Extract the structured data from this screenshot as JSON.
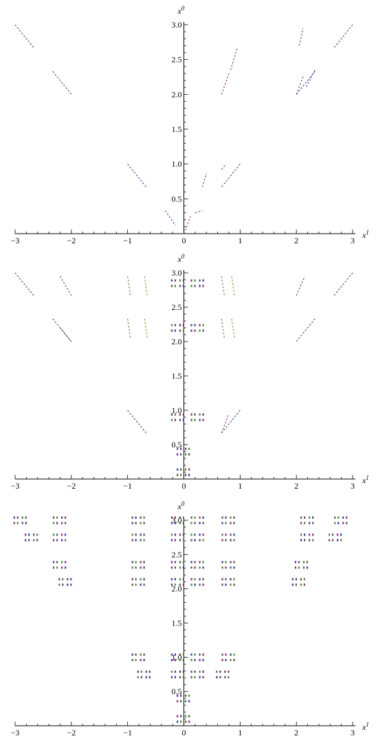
{
  "charts": [
    {
      "chart_data": {
        "type": "scatter",
        "xlim": [
          -3,
          3
        ],
        "ylim": [
          0,
          3
        ],
        "x_ticks": [
          "-3",
          "-2",
          "-1",
          "0",
          "1",
          "2",
          "3"
        ],
        "y_ticks": [
          "0.5",
          "1.0",
          "1.5",
          "2.0",
          "2.5",
          "3.0"
        ],
        "x_axis_label": {
          "base": "x",
          "sup": "1"
        },
        "y_axis_label": {
          "base": "x",
          "sup": "0"
        },
        "series": [
          {
            "color": "#3b3b9e",
            "segments": [
              [
                [
                  -3.0,
                  3.0
                ],
                [
                  -2.67,
                  2.67
                ]
              ],
              [
                [
                  -2.33,
                  2.33
                ],
                [
                  -2.0,
                  2.0
                ]
              ],
              [
                [
                  -1.0,
                  1.0
                ],
                [
                  -0.67,
                  0.67
                ]
              ],
              [
                [
                  -0.33,
                  0.33
                ],
                [
                  -0.15,
                  0.12
                ]
              ],
              [
                [
                  3.0,
                  3.0
                ],
                [
                  2.67,
                  2.67
                ]
              ],
              [
                [
                  2.33,
                  2.33
                ],
                [
                  2.0,
                  2.0
                ]
              ],
              [
                [
                  1.0,
                  1.0
                ],
                [
                  0.67,
                  0.67
                ]
              ]
            ]
          },
          {
            "color": "#8e2d6e",
            "segments": [
              [
                [
                  2.0,
                  2.0
                ],
                [
                  2.13,
                  2.28
                ]
              ],
              [
                [
                  2.33,
                  2.35
                ],
                [
                  2.17,
                  2.1
                ]
              ],
              [
                [
                  2.05,
                  2.7
                ],
                [
                  2.12,
                  2.95
                ]
              ],
              [
                [
                  0.67,
                  2.0
                ],
                [
                  0.8,
                  2.3
                ]
              ],
              [
                [
                  0.83,
                  2.35
                ],
                [
                  0.95,
                  2.67
                ]
              ],
              [
                [
                  0.33,
                  0.67
                ],
                [
                  0.4,
                  0.87
                ]
              ],
              [
                [
                  0.67,
                  0.92
                ],
                [
                  0.75,
                  1.0
                ]
              ],
              [
                [
                  0.0,
                  0.0
                ],
                [
                  0.12,
                  0.25
                ]
              ],
              [
                [
                  0.2,
                  0.3
                ],
                [
                  0.33,
                  0.33
                ]
              ]
            ]
          }
        ]
      }
    },
    {
      "chart_data": {
        "type": "scatter",
        "xlim": [
          -3,
          3
        ],
        "ylim": [
          0,
          3
        ],
        "x_ticks": [
          "-3",
          "-2",
          "-1",
          "0",
          "1",
          "2",
          "3"
        ],
        "y_ticks": [
          "0.5",
          "1.0",
          "1.5",
          "2.0",
          "2.5",
          "3.0"
        ],
        "x_axis_label": {
          "base": "x",
          "sup": "1"
        },
        "y_axis_label": {
          "base": "x",
          "sup": "0"
        },
        "series": [
          {
            "color": "#3b3b9e",
            "segments": [
              [
                [
                  -3.0,
                  3.0
                ],
                [
                  -2.67,
                  2.67
                ]
              ],
              [
                [
                  -2.33,
                  2.33
                ],
                [
                  -2.0,
                  2.0
                ]
              ],
              [
                [
                  -1.0,
                  1.0
                ],
                [
                  -0.67,
                  0.67
                ]
              ],
              [
                [
                  3.0,
                  3.0
                ],
                [
                  2.67,
                  2.67
                ]
              ],
              [
                [
                  2.33,
                  2.33
                ],
                [
                  2.0,
                  2.0
                ]
              ],
              [
                [
                  1.0,
                  1.0
                ],
                [
                  0.67,
                  0.67
                ]
              ]
            ]
          },
          {
            "color": "#8e2d6e",
            "segments": [
              [
                [
                  -2.2,
                  2.95
                ],
                [
                  -2.0,
                  2.67
                ]
              ],
              [
                [
                  -2.2,
                  2.2
                ],
                [
                  -2.0,
                  2.0
                ]
              ],
              [
                [
                  2.0,
                  2.67
                ],
                [
                  2.15,
                  2.95
                ]
              ],
              [
                [
                  0.67,
                  0.67
                ],
                [
                  0.8,
                  0.95
                ]
              ]
            ]
          },
          {
            "color": "#4c8a3a",
            "segments": [
              [
                [
                  -1.0,
                  2.95
                ],
                [
                  -0.95,
                  2.67
                ]
              ],
              [
                [
                  -1.0,
                  2.33
                ],
                [
                  -0.95,
                  2.05
                ]
              ],
              [
                [
                  0.67,
                  2.95
                ],
                [
                  0.72,
                  2.67
                ]
              ],
              [
                [
                  0.67,
                  2.33
                ],
                [
                  0.72,
                  2.05
                ]
              ]
            ]
          },
          {
            "color": "#b07a2a",
            "segments": [
              [
                [
                  0.85,
                  2.95
                ],
                [
                  0.9,
                  2.67
                ]
              ],
              [
                [
                  0.85,
                  2.33
                ],
                [
                  0.9,
                  2.05
                ]
              ],
              [
                [
                  -0.7,
                  2.95
                ],
                [
                  -0.65,
                  2.67
                ]
              ],
              [
                [
                  -0.7,
                  2.33
                ],
                [
                  -0.65,
                  2.05
                ]
              ]
            ]
          }
        ],
        "clusters": [
          {
            "x": -0.1,
            "y": 2.8,
            "colors": [
              "#3b3b9e",
              "#8e2d6e",
              "#4c8a3a",
              "#555555"
            ]
          },
          {
            "x": 0.25,
            "y": 2.8,
            "colors": [
              "#8e2d6e",
              "#4c8a3a",
              "#555555",
              "#3b3b9e"
            ]
          },
          {
            "x": -0.1,
            "y": 2.15,
            "colors": [
              "#4c8a3a",
              "#555555",
              "#3b3b9e",
              "#8e2d6e"
            ]
          },
          {
            "x": 0.25,
            "y": 2.15,
            "colors": [
              "#555555",
              "#3b3b9e",
              "#8e2d6e",
              "#4c8a3a"
            ]
          },
          {
            "x": -0.1,
            "y": 0.85,
            "colors": [
              "#3b3b9e",
              "#4c8a3a",
              "#8e2d6e",
              "#555555"
            ]
          },
          {
            "x": 0.25,
            "y": 0.85,
            "colors": [
              "#8e2d6e",
              "#555555",
              "#4c8a3a",
              "#3b3b9e"
            ]
          },
          {
            "x": 0.0,
            "y": 0.35,
            "colors": [
              "#555555",
              "#3b3b9e",
              "#8e2d6e",
              "#4c8a3a"
            ]
          },
          {
            "x": 0.0,
            "y": 0.05,
            "colors": [
              "#3b3b9e",
              "#555555",
              "#4c8a3a",
              "#8e2d6e"
            ]
          }
        ]
      }
    },
    {
      "chart_data": {
        "type": "scatter",
        "xlim": [
          -3,
          3
        ],
        "ylim": [
          0,
          3
        ],
        "x_ticks": [
          "-3",
          "-2",
          "-1",
          "0",
          "1",
          "2",
          "3"
        ],
        "y_ticks": [
          "0.5",
          "1.0",
          "1.5",
          "2.0",
          "2.5",
          "3.0"
        ],
        "x_axis_label": {
          "base": "x",
          "sup": "1"
        },
        "y_axis_label": {
          "base": "x",
          "sup": "0"
        },
        "clusters": [
          {
            "x": -2.9,
            "y": 2.95,
            "colors": [
              "#3b3b9e",
              "#8e2d6e",
              "#4c8a3a",
              "#555555"
            ]
          },
          {
            "x": -2.7,
            "y": 2.7,
            "colors": [
              "#8e2d6e",
              "#3b3b9e",
              "#555555",
              "#4c8a3a"
            ]
          },
          {
            "x": -2.2,
            "y": 2.95,
            "colors": [
              "#555555",
              "#4c8a3a",
              "#3b3b9e",
              "#8e2d6e"
            ]
          },
          {
            "x": -2.2,
            "y": 2.7,
            "colors": [
              "#4c8a3a",
              "#555555",
              "#8e2d6e",
              "#3b3b9e"
            ]
          },
          {
            "x": -2.2,
            "y": 2.3,
            "colors": [
              "#3b3b9e",
              "#555555",
              "#4c8a3a",
              "#8e2d6e"
            ]
          },
          {
            "x": -2.1,
            "y": 2.05,
            "colors": [
              "#8e2d6e",
              "#4c8a3a",
              "#555555",
              "#3b3b9e"
            ]
          },
          {
            "x": -0.8,
            "y": 2.95,
            "colors": [
              "#555555",
              "#3b3b9e",
              "#8e2d6e",
              "#4c8a3a"
            ]
          },
          {
            "x": -0.8,
            "y": 2.7,
            "colors": [
              "#4c8a3a",
              "#8e2d6e",
              "#3b3b9e",
              "#555555"
            ]
          },
          {
            "x": -0.8,
            "y": 2.3,
            "colors": [
              "#3b3b9e",
              "#4c8a3a",
              "#555555",
              "#8e2d6e"
            ]
          },
          {
            "x": -0.8,
            "y": 2.05,
            "colors": [
              "#8e2d6e",
              "#555555",
              "#4c8a3a",
              "#3b3b9e"
            ]
          },
          {
            "x": -0.1,
            "y": 2.95,
            "colors": [
              "#555555",
              "#8e2d6e",
              "#3b3b9e",
              "#4c8a3a"
            ]
          },
          {
            "x": -0.1,
            "y": 2.7,
            "colors": [
              "#4c8a3a",
              "#3b3b9e",
              "#8e2d6e",
              "#555555"
            ]
          },
          {
            "x": -0.1,
            "y": 2.3,
            "colors": [
              "#3b3b9e",
              "#8e2d6e",
              "#555555",
              "#4c8a3a"
            ]
          },
          {
            "x": -0.1,
            "y": 2.05,
            "colors": [
              "#8e2d6e",
              "#3b3b9e",
              "#4c8a3a",
              "#555555"
            ]
          },
          {
            "x": 0.25,
            "y": 2.95,
            "colors": [
              "#555555",
              "#4c8a3a",
              "#8e2d6e",
              "#3b3b9e"
            ]
          },
          {
            "x": 0.25,
            "y": 2.7,
            "colors": [
              "#4c8a3a",
              "#555555",
              "#3b3b9e",
              "#8e2d6e"
            ]
          },
          {
            "x": 0.25,
            "y": 2.3,
            "colors": [
              "#3b3b9e",
              "#555555",
              "#8e2d6e",
              "#4c8a3a"
            ]
          },
          {
            "x": 0.25,
            "y": 2.05,
            "colors": [
              "#8e2d6e",
              "#4c8a3a",
              "#3b3b9e",
              "#555555"
            ]
          },
          {
            "x": 0.8,
            "y": 2.95,
            "colors": [
              "#555555",
              "#3b3b9e",
              "#4c8a3a",
              "#8e2d6e"
            ]
          },
          {
            "x": 0.8,
            "y": 2.7,
            "colors": [
              "#4c8a3a",
              "#8e2d6e",
              "#555555",
              "#3b3b9e"
            ]
          },
          {
            "x": 0.8,
            "y": 2.3,
            "colors": [
              "#3b3b9e",
              "#4c8a3a",
              "#8e2d6e",
              "#555555"
            ]
          },
          {
            "x": 0.8,
            "y": 2.05,
            "colors": [
              "#8e2d6e",
              "#555555",
              "#3b3b9e",
              "#4c8a3a"
            ]
          },
          {
            "x": 2.2,
            "y": 2.95,
            "colors": [
              "#555555",
              "#8e2d6e",
              "#4c8a3a",
              "#3b3b9e"
            ]
          },
          {
            "x": 2.2,
            "y": 2.7,
            "colors": [
              "#4c8a3a",
              "#3b3b9e",
              "#555555",
              "#8e2d6e"
            ]
          },
          {
            "x": 2.1,
            "y": 2.3,
            "colors": [
              "#3b3b9e",
              "#8e2d6e",
              "#4c8a3a",
              "#555555"
            ]
          },
          {
            "x": 2.05,
            "y": 2.05,
            "colors": [
              "#8e2d6e",
              "#3b3b9e",
              "#555555",
              "#4c8a3a"
            ]
          },
          {
            "x": 2.8,
            "y": 2.95,
            "colors": [
              "#555555",
              "#4c8a3a",
              "#3b3b9e",
              "#8e2d6e"
            ]
          },
          {
            "x": 2.7,
            "y": 2.7,
            "colors": [
              "#4c8a3a",
              "#555555",
              "#8e2d6e",
              "#3b3b9e"
            ]
          },
          {
            "x": -0.8,
            "y": 0.95,
            "colors": [
              "#3b3b9e",
              "#555555",
              "#4c8a3a",
              "#8e2d6e"
            ]
          },
          {
            "x": -0.7,
            "y": 0.7,
            "colors": [
              "#8e2d6e",
              "#4c8a3a",
              "#555555",
              "#3b3b9e"
            ]
          },
          {
            "x": -0.1,
            "y": 0.95,
            "colors": [
              "#555555",
              "#3b3b9e",
              "#8e2d6e",
              "#4c8a3a"
            ]
          },
          {
            "x": -0.1,
            "y": 0.7,
            "colors": [
              "#4c8a3a",
              "#8e2d6e",
              "#3b3b9e",
              "#555555"
            ]
          },
          {
            "x": 0.25,
            "y": 0.95,
            "colors": [
              "#3b3b9e",
              "#4c8a3a",
              "#555555",
              "#8e2d6e"
            ]
          },
          {
            "x": 0.25,
            "y": 0.7,
            "colors": [
              "#8e2d6e",
              "#555555",
              "#4c8a3a",
              "#3b3b9e"
            ]
          },
          {
            "x": 0.8,
            "y": 0.95,
            "colors": [
              "#555555",
              "#8e2d6e",
              "#3b3b9e",
              "#4c8a3a"
            ]
          },
          {
            "x": 0.7,
            "y": 0.7,
            "colors": [
              "#4c8a3a",
              "#3b3b9e",
              "#8e2d6e",
              "#555555"
            ]
          },
          {
            "x": 0.0,
            "y": 0.35,
            "colors": [
              "#3b3b9e",
              "#8e2d6e",
              "#555555",
              "#4c8a3a"
            ]
          },
          {
            "x": 0.0,
            "y": 0.05,
            "colors": [
              "#8e2d6e",
              "#3b3b9e",
              "#4c8a3a",
              "#555555"
            ]
          }
        ]
      }
    }
  ]
}
